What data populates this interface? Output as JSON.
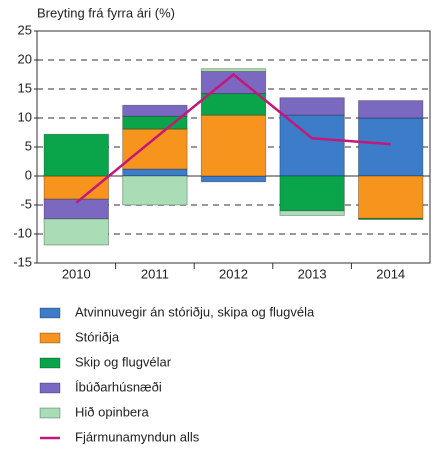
{
  "chart_data": {
    "type": "stacked_bar_line",
    "y_axis_label": "Breyting frá fyrra ári (%)",
    "categories": [
      "2010",
      "2011",
      "2012",
      "2013",
      "2014"
    ],
    "series": [
      {
        "name": "Atvinnuvegir án stóriðju, skipa og flugvéla",
        "color": "#3d7cc9",
        "values": [
          0,
          1.2,
          -1,
          10.5,
          10
        ]
      },
      {
        "name": "Stóriðja",
        "color": "#f7941d",
        "values": [
          -4,
          6.9,
          10.5,
          0,
          -7.3
        ]
      },
      {
        "name": "Skip og flugvélar",
        "color": "#0aa54b",
        "values": [
          7.2,
          2.2,
          3.7,
          -6,
          -0.2
        ]
      },
      {
        "name": "Íbúðarhúsnæði",
        "color": "#7b68c0",
        "values": [
          -3.4,
          1.9,
          3.8,
          3,
          3
        ]
      },
      {
        "name": "Hið opinbera",
        "color": "#a8ddb5",
        "values": [
          -4.5,
          -5,
          0.5,
          -0.8,
          0
        ]
      },
      {
        "name": "Fjármunamyndun alls",
        "color": "#c3187a",
        "type": "line",
        "values": [
          -4.6,
          6.5,
          17.5,
          6.5,
          5.5
        ]
      }
    ],
    "ylim": [
      -15,
      25
    ],
    "yticks": [
      -15,
      -10,
      -5,
      0,
      5,
      10,
      15,
      20,
      25
    ],
    "grid": true,
    "legend": "bottom"
  }
}
